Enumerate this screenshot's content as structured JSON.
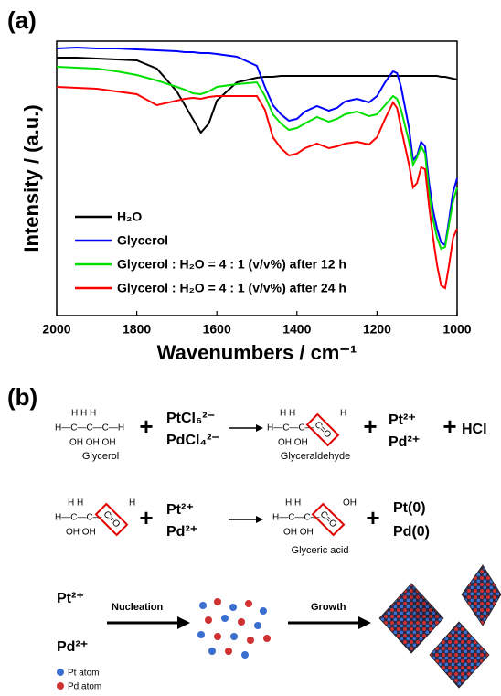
{
  "chart_data": {
    "type": "line",
    "panel_label": "(a)",
    "x_label": "Wavenumbers / cm⁻¹",
    "y_label": "Intensity / (a.u.)",
    "xlim": [
      2000,
      1000
    ],
    "xticks": [
      2000,
      1800,
      1600,
      1400,
      1200,
      1000
    ],
    "ylim": [
      0,
      300
    ],
    "grid": false,
    "legend": "lower left",
    "x": [
      2000,
      1950,
      1900,
      1850,
      1800,
      1750,
      1700,
      1680,
      1660,
      1640,
      1620,
      1600,
      1550,
      1500,
      1480,
      1460,
      1440,
      1420,
      1400,
      1380,
      1350,
      1320,
      1300,
      1280,
      1250,
      1220,
      1200,
      1180,
      1160,
      1150,
      1140,
      1120,
      1110,
      1100,
      1090,
      1080,
      1070,
      1060,
      1050,
      1040,
      1030,
      1020,
      1010,
      1000
    ],
    "series": [
      {
        "name": "H₂O",
        "color": "#000000",
        "values": [
          282,
          282,
          281,
          280,
          279,
          270,
          245,
          230,
          215,
          200,
          210,
          235,
          255,
          260,
          261,
          261,
          262,
          262,
          262,
          262,
          262,
          262,
          262,
          262,
          262,
          262,
          262,
          262,
          262,
          262,
          262,
          262,
          262,
          262,
          262,
          262,
          262,
          262,
          262,
          261,
          261,
          260,
          259,
          258
        ]
      },
      {
        "name": "Glycerol",
        "color": "#0000ff",
        "values": [
          292,
          293,
          292,
          292,
          291,
          290,
          289,
          288,
          288,
          287,
          287,
          286,
          283,
          273,
          250,
          230,
          220,
          213,
          215,
          223,
          229,
          224,
          227,
          234,
          237,
          233,
          240,
          255,
          267,
          265,
          250,
          205,
          170,
          175,
          190,
          185,
          145,
          115,
          95,
          80,
          77,
          105,
          135,
          150
        ]
      },
      {
        "name": "Glycerol : H₂O = 4 : 1 (v/v%) after 12 h",
        "color": "#00e000",
        "values": [
          272,
          271,
          270,
          267,
          263,
          257,
          250,
          247,
          243,
          242,
          245,
          250,
          253,
          255,
          240,
          220,
          210,
          203,
          205,
          210,
          217,
          212,
          215,
          220,
          223,
          218,
          220,
          230,
          240,
          237,
          225,
          190,
          165,
          173,
          185,
          177,
          135,
          105,
          85,
          73,
          75,
          100,
          125,
          140
        ]
      },
      {
        "name": "Glycerol : H₂O = 4 : 1 (v/v%) after 24 h",
        "color": "#ff0000",
        "values": [
          250,
          249,
          248,
          245,
          242,
          230,
          235,
          237,
          238,
          237,
          239,
          240,
          240,
          240,
          225,
          195,
          183,
          175,
          177,
          183,
          188,
          183,
          185,
          188,
          190,
          187,
          195,
          215,
          233,
          227,
          205,
          165,
          140,
          145,
          162,
          160,
          120,
          85,
          55,
          33,
          30,
          55,
          85,
          95
        ]
      }
    ]
  },
  "scheme": {
    "panel_label": "(b)",
    "plus": "+",
    "glycerol": {
      "top": "H    H    H",
      "middle": "H—C—C—C—H",
      "bottom": "OH  OH  OH",
      "name": "Glycerol"
    },
    "reagents": [
      "PtCl₆²⁻",
      "PdCl₄²⁻"
    ],
    "glyceraldehyde": {
      "top": "H    H",
      "middle": "H—C—C—",
      "bottom": "OH  OH",
      "group": "C=O",
      "group_h": "H",
      "name": "Glyceraldehyde"
    },
    "ions": [
      "Pt²⁺",
      "Pd²⁺"
    ],
    "byproduct": "HCl",
    "glyceric_acid": {
      "top": "H    H",
      "middle": "H—C—C—",
      "bottom": "OH  OH",
      "group": "C=O",
      "group_oh": "OH",
      "name": "Glyceric acid"
    },
    "metals": [
      "Pt(0)",
      "Pd(0)"
    ],
    "steps": [
      "Nucleation",
      "Growth"
    ],
    "legend": [
      "Pt atom",
      "Pd atom"
    ]
  }
}
